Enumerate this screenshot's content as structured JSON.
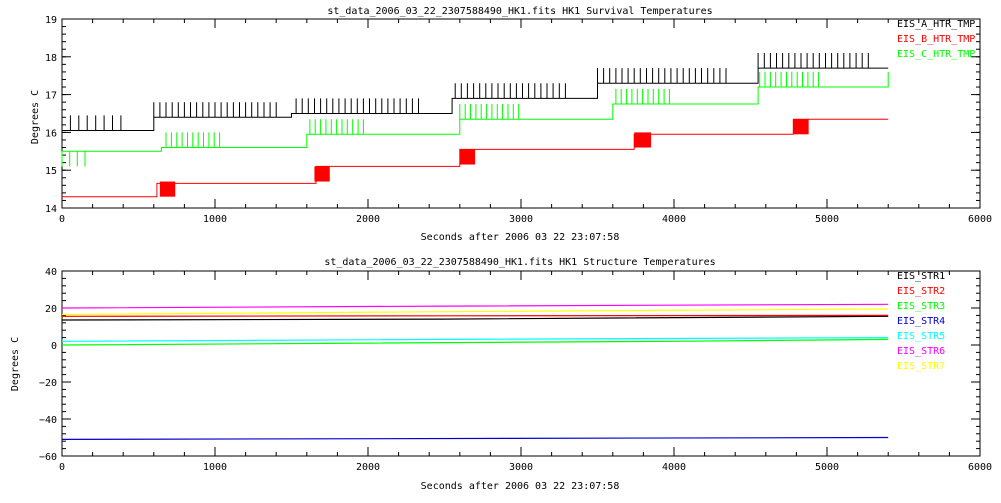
{
  "chart_data": [
    {
      "type": "line",
      "title": "st_data_2006_03_22_2307588490_HK1.fits HK1 Survival Temperatures",
      "xlabel": "Seconds after 2006 03 22 23:07:58",
      "ylabel": "Degrees C",
      "xlim": [
        0,
        6000
      ],
      "ylim": [
        14,
        19
      ],
      "xticks": [
        "0",
        "1000",
        "2000",
        "3000",
        "4000",
        "5000",
        "6000"
      ],
      "yticks": [
        "14",
        "15",
        "16",
        "17",
        "18",
        "19"
      ],
      "legend_position": "top-right",
      "series": [
        {
          "name": "EIS_A_HTR_TMP",
          "color": "#000000",
          "levels": [
            [
              0,
              16.05
            ],
            [
              600,
              16.4
            ],
            [
              1500,
              16.5
            ],
            [
              2550,
              16.9
            ],
            [
              3500,
              17.3
            ],
            [
              4550,
              17.7
            ],
            [
              5400,
              17.7
            ]
          ],
          "spikes": [
            {
              "start": 0,
              "end": 400,
              "period": 55,
              "amp": 0.4
            },
            {
              "start": 600,
              "end": 1400,
              "period": 40,
              "amp": 0.4
            },
            {
              "start": 1530,
              "end": 2330,
              "period": 40,
              "amp": 0.4
            },
            {
              "start": 2570,
              "end": 3300,
              "period": 40,
              "amp": 0.4
            },
            {
              "start": 3500,
              "end": 4350,
              "period": 40,
              "amp": 0.4
            },
            {
              "start": 4550,
              "end": 5270,
              "period": 40,
              "amp": 0.4
            }
          ]
        },
        {
          "name": "EIS_B_HTR_TMP",
          "color": "#ff0000",
          "levels": [
            [
              0,
              14.3
            ],
            [
              620,
              14.65
            ],
            [
              1660,
              15.1
            ],
            [
              2600,
              15.55
            ],
            [
              3740,
              15.95
            ],
            [
              4780,
              16.35
            ],
            [
              5400,
              16.35
            ]
          ],
          "blocks": [
            [
              640,
              740,
              14.3,
              14.7
            ],
            [
              1650,
              1750,
              14.7,
              15.1
            ],
            [
              2600,
              2700,
              15.15,
              15.55
            ],
            [
              3740,
              3850,
              15.6,
              16.0
            ],
            [
              4780,
              4880,
              15.95,
              16.35
            ]
          ]
        },
        {
          "name": "EIS_C_HTR_TMP",
          "color": "#00ff00",
          "levels": [
            [
              0,
              15.5
            ],
            [
              650,
              15.6
            ],
            [
              1600,
              15.95
            ],
            [
              2600,
              16.35
            ],
            [
              3600,
              16.75
            ],
            [
              4550,
              17.2
            ],
            [
              5400,
              17.6
            ]
          ],
          "spikes": [
            {
              "start": 0,
              "end": 150,
              "period": 50,
              "amp": -0.4
            },
            {
              "start": 680,
              "end": 1060,
              "period": 35,
              "amp": 0.4
            },
            {
              "start": 1620,
              "end": 2000,
              "period": 35,
              "amp": 0.4
            },
            {
              "start": 2600,
              "end": 3000,
              "period": 35,
              "amp": 0.4
            },
            {
              "start": 3620,
              "end": 4000,
              "period": 35,
              "amp": 0.4
            },
            {
              "start": 4560,
              "end": 4950,
              "period": 35,
              "amp": 0.4
            }
          ]
        }
      ]
    },
    {
      "type": "line",
      "title": "st_data_2006_03_22_2307588490_HK1.fits HK1 Structure Temperatures",
      "xlabel": "Seconds after 2006 03 22 23:07:58",
      "ylabel": "Degrees C",
      "xlim": [
        0,
        6000
      ],
      "ylim": [
        -60,
        40
      ],
      "xticks": [
        "0",
        "1000",
        "2000",
        "3000",
        "4000",
        "5000",
        "6000"
      ],
      "yticks": [
        "−60",
        "−40",
        "−20",
        "0",
        "20",
        "40"
      ],
      "legend_position": "top-right",
      "series": [
        {
          "name": "EIS_STR1",
          "color": "#000000",
          "points": [
            [
              0,
              13.5
            ],
            [
              2500,
              14.0
            ],
            [
              5400,
              15.5
            ]
          ]
        },
        {
          "name": "EIS_STR2",
          "color": "#ff0000",
          "points": [
            [
              0,
              15.5
            ],
            [
              2500,
              15.8
            ],
            [
              5400,
              16.0
            ]
          ]
        },
        {
          "name": "EIS_STR3",
          "color": "#00ff00",
          "points": [
            [
              0,
              0.0
            ],
            [
              2000,
              1.0
            ],
            [
              4000,
              2.0
            ],
            [
              5400,
              3.0
            ]
          ]
        },
        {
          "name": "EIS_STR4",
          "color": "#0000cc",
          "points": [
            [
              0,
              -51
            ],
            [
              5400,
              -50
            ]
          ]
        },
        {
          "name": "EIS_STR5",
          "color": "#00ffff",
          "points": [
            [
              0,
              2.0
            ],
            [
              2500,
              3.0
            ],
            [
              5400,
              4.0
            ]
          ]
        },
        {
          "name": "EIS_STR6",
          "color": "#ff00ff",
          "points": [
            [
              0,
              20.0
            ],
            [
              2500,
              21.0
            ],
            [
              5400,
              22.0
            ]
          ]
        },
        {
          "name": "EIS_STR7",
          "color": "#ffff00",
          "points": [
            [
              0,
              16.5
            ],
            [
              2500,
              18.0
            ],
            [
              5400,
              19.5
            ]
          ]
        }
      ]
    }
  ]
}
